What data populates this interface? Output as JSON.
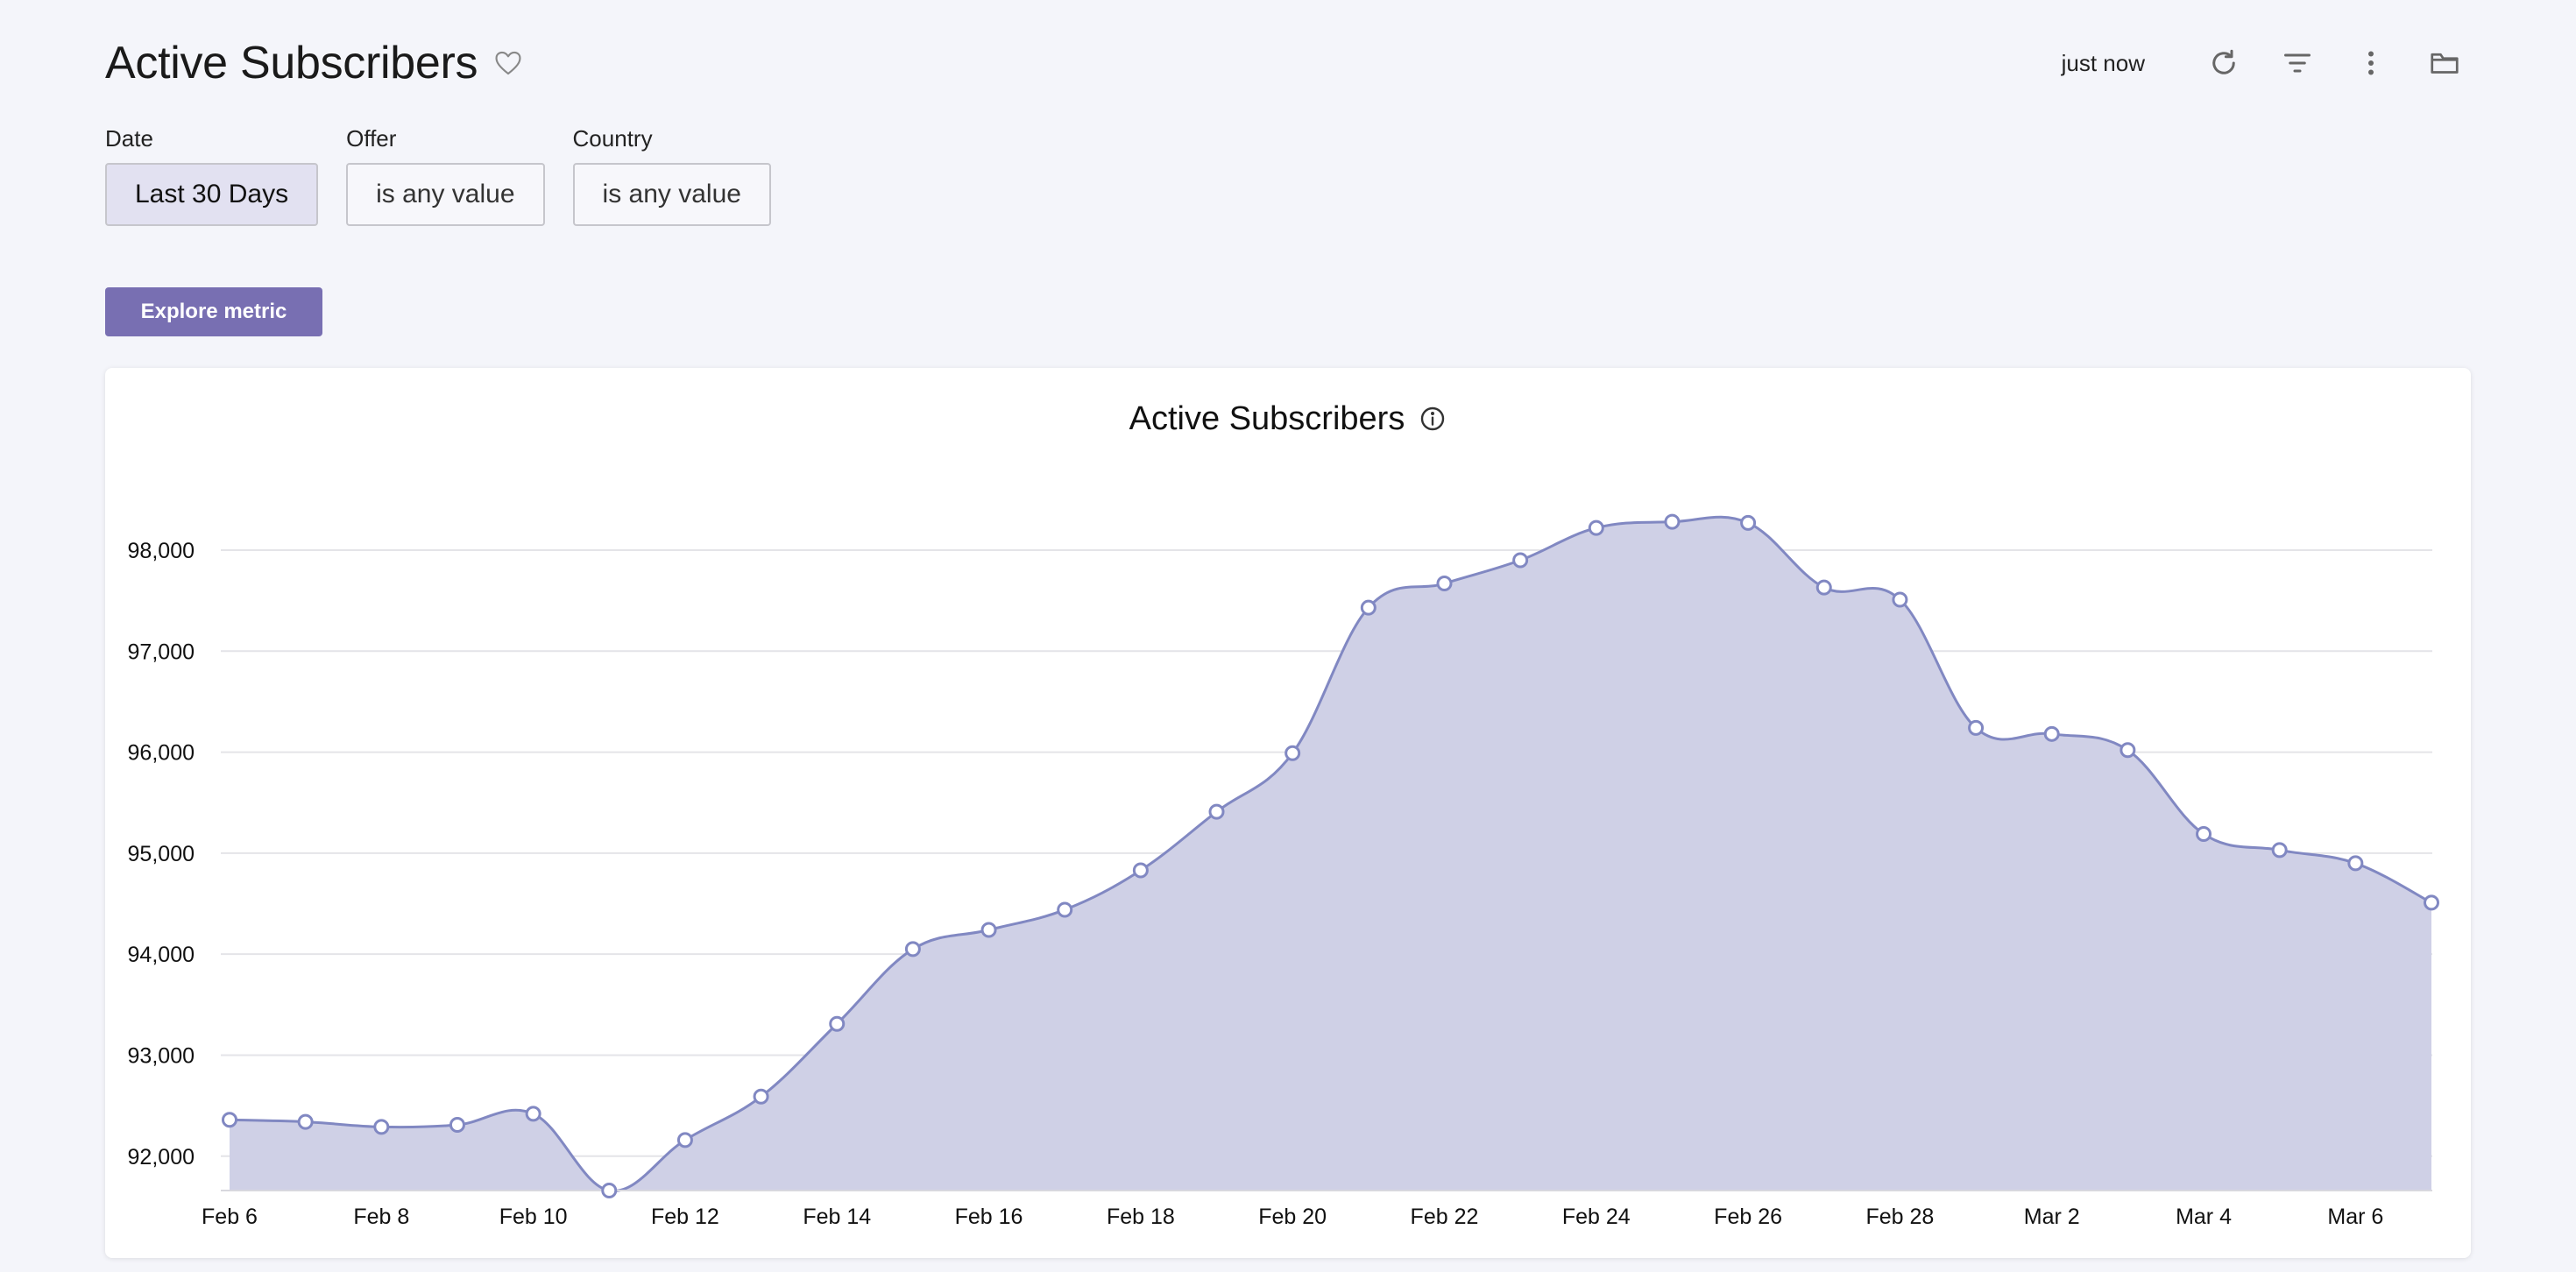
{
  "header": {
    "title": "Active Subscribers",
    "refreshed": "just now"
  },
  "icons": {
    "favorite": "heart-icon",
    "refresh": "refresh-icon",
    "filter": "filter-icon",
    "more": "more-vertical-icon",
    "folder": "folder-icon",
    "info": "info-icon"
  },
  "filters": [
    {
      "label": "Date",
      "value": "Last 30 Days",
      "active": true
    },
    {
      "label": "Offer",
      "value": "is any value",
      "active": false
    },
    {
      "label": "Country",
      "value": "is any value",
      "active": false
    }
  ],
  "explore_label": "Explore metric",
  "colors": {
    "accent": "#786fb2",
    "line": "#8188c2",
    "fill": "#cfd0e6",
    "background": "#f4f5fa"
  },
  "chart_data": {
    "type": "area",
    "title": "Active Subscribers",
    "xlabel": "",
    "ylabel": "",
    "x": [
      "Feb 6",
      "Feb 7",
      "Feb 8",
      "Feb 9",
      "Feb 10",
      "Feb 11",
      "Feb 12",
      "Feb 13",
      "Feb 14",
      "Feb 15",
      "Feb 16",
      "Feb 17",
      "Feb 18",
      "Feb 19",
      "Feb 20",
      "Feb 21",
      "Feb 22",
      "Feb 23",
      "Feb 24",
      "Feb 25",
      "Feb 26",
      "Feb 27",
      "Feb 28",
      "Mar 1",
      "Mar 2",
      "Mar 3",
      "Mar 4",
      "Mar 5",
      "Mar 6",
      "Mar 7"
    ],
    "x_ticks": [
      "Feb 6",
      "Feb 8",
      "Feb 10",
      "Feb 12",
      "Feb 14",
      "Feb 16",
      "Feb 18",
      "Feb 20",
      "Feb 22",
      "Feb 24",
      "Feb 26",
      "Feb 28",
      "Mar 2",
      "Mar 4",
      "Mar 6"
    ],
    "values": [
      92360,
      92340,
      92290,
      92310,
      92420,
      91660,
      92160,
      92590,
      93310,
      94050,
      94240,
      94440,
      94830,
      95410,
      95990,
      97430,
      97670,
      97900,
      98220,
      98280,
      98270,
      97630,
      97510,
      96240,
      96180,
      96020,
      95190,
      95030,
      94900,
      94510
    ],
    "y_ticks": [
      92000,
      93000,
      94000,
      95000,
      96000,
      97000,
      98000
    ],
    "ylim": [
      91660,
      98520
    ],
    "grid": true,
    "markers": true,
    "smooth": true
  }
}
